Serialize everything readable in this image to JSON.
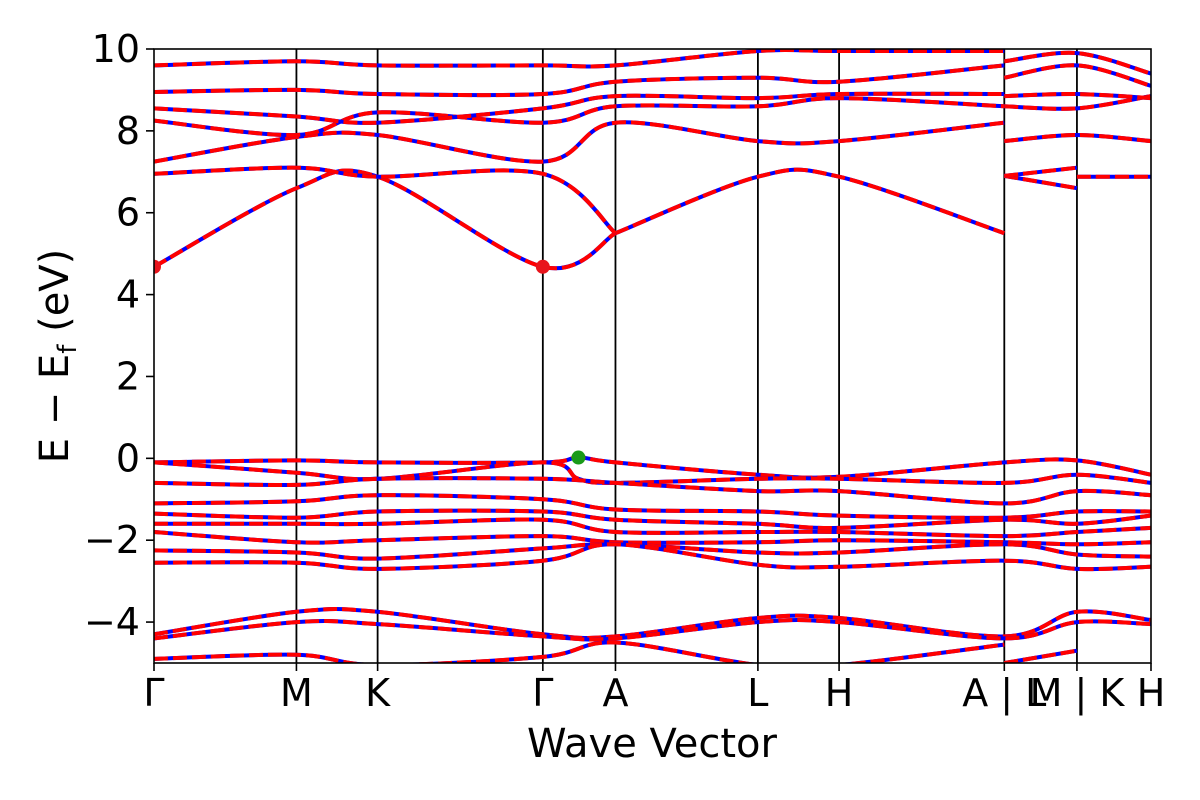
{
  "chart_data": {
    "type": "line",
    "xlabel": "Wave Vector",
    "ylabel": "E − E",
    "ylabel_sub": "f",
    "ylabel_unit": " (eV)",
    "ylim": [
      -5,
      10
    ],
    "yticks": [
      -4,
      -2,
      0,
      2,
      4,
      6,
      8,
      10
    ],
    "ytick_labels": [
      "−4",
      "−2",
      "0",
      "2",
      "4",
      "6",
      "8",
      "10"
    ],
    "xlim": [
      0,
      7.0
    ],
    "kpath": [
      {
        "label": "Γ",
        "x": 0.0
      },
      {
        "label": "M",
        "x": 1.0
      },
      {
        "label": "K",
        "x": 1.57
      },
      {
        "label": "Γ",
        "x": 2.73
      },
      {
        "label": "A",
        "x": 3.24
      },
      {
        "label": "L",
        "x": 4.24
      },
      {
        "label": "H",
        "x": 4.81
      },
      {
        "label": "A | L",
        "x": 5.97
      },
      {
        "label": "M | K",
        "x": 6.48
      },
      {
        "label": "H",
        "x": 7.0
      }
    ],
    "line_colors": {
      "spin_up": "#ff0000",
      "spin_down": "#0000ff"
    },
    "series": [
      {
        "x": [
          0.0,
          1.0,
          1.57,
          2.73,
          3.24
        ],
        "y": [
          4.68,
          6.6,
          6.88,
          4.68,
          5.5
        ]
      },
      {
        "x": [
          3.24,
          4.24,
          4.81,
          5.97
        ],
        "y": [
          5.5,
          6.88,
          6.88,
          5.5
        ]
      },
      {
        "x": [
          0.0,
          1.0,
          1.57,
          2.73,
          3.24
        ],
        "y": [
          6.95,
          7.1,
          6.88,
          6.95,
          5.5
        ]
      },
      {
        "x": [
          0.0,
          1.0,
          1.57,
          2.73,
          3.24,
          4.24,
          4.81,
          5.97
        ],
        "y": [
          7.25,
          7.85,
          7.9,
          7.25,
          8.2,
          7.75,
          7.75,
          8.2
        ]
      },
      {
        "x": [
          0.0,
          1.0,
          1.57,
          2.73,
          3.24,
          4.24,
          4.81,
          5.97
        ],
        "y": [
          8.25,
          7.9,
          8.45,
          8.2,
          8.6,
          8.6,
          8.8,
          8.6
        ]
      },
      {
        "x": [
          0.0,
          1.0,
          1.57,
          2.73,
          3.24,
          4.24,
          4.81,
          5.97
        ],
        "y": [
          8.55,
          8.35,
          8.2,
          8.55,
          8.85,
          8.8,
          8.9,
          8.9
        ]
      },
      {
        "x": [
          0.0,
          1.0,
          1.57,
          2.73,
          3.24,
          4.24,
          4.81,
          5.97
        ],
        "y": [
          8.95,
          9.0,
          8.9,
          8.9,
          9.2,
          9.3,
          9.2,
          9.6
        ]
      },
      {
        "x": [
          0.0,
          1.0,
          1.57,
          2.73,
          3.24,
          4.24,
          4.81,
          5.97
        ],
        "y": [
          9.6,
          9.7,
          9.6,
          9.6,
          9.6,
          9.95,
          9.95,
          9.95
        ]
      },
      {
        "x": [
          5.97,
          6.48
        ],
        "y": [
          6.9,
          6.6
        ]
      },
      {
        "x": [
          5.97,
          6.48
        ],
        "y": [
          6.9,
          7.1
        ]
      },
      {
        "x": [
          6.48,
          7.0
        ],
        "y": [
          6.88,
          6.88
        ]
      },
      {
        "x": [
          5.97,
          6.48,
          7.0
        ],
        "y": [
          7.75,
          7.9,
          7.75
        ]
      },
      {
        "x": [
          5.97,
          6.48,
          7.0
        ],
        "y": [
          8.6,
          8.55,
          8.85
        ]
      },
      {
        "x": [
          5.97,
          6.48,
          7.0
        ],
        "y": [
          8.85,
          8.9,
          8.8
        ]
      },
      {
        "x": [
          5.97,
          6.48,
          7.0
        ],
        "y": [
          9.3,
          9.6,
          9.1
        ]
      },
      {
        "x": [
          5.97,
          6.48,
          7.0
        ],
        "y": [
          9.7,
          9.9,
          9.4
        ]
      },
      {
        "x": [
          0.0,
          1.0,
          1.57,
          2.73,
          2.98,
          3.24,
          4.24,
          4.81,
          5.97,
          6.48,
          7.0
        ],
        "y": [
          -0.1,
          -0.05,
          -0.1,
          -0.1,
          0.02,
          -0.1,
          -0.4,
          -0.45,
          -0.1,
          -0.05,
          -0.4
        ]
      },
      {
        "x": [
          0.0,
          1.0,
          1.57,
          2.73,
          2.98,
          3.24,
          4.24,
          4.81,
          5.97,
          6.48,
          7.0
        ],
        "y": [
          -0.1,
          -0.35,
          -0.5,
          -0.1,
          -0.5,
          -0.6,
          -0.5,
          -0.5,
          -0.6,
          -0.4,
          -0.6
        ]
      },
      {
        "x": [
          0.0,
          1.0,
          1.57,
          2.73,
          3.24,
          4.24,
          4.81,
          5.97,
          6.48,
          7.0
        ],
        "y": [
          -0.6,
          -0.65,
          -0.5,
          -0.5,
          -0.6,
          -0.8,
          -0.8,
          -1.1,
          -0.8,
          -0.9
        ]
      },
      {
        "x": [
          0.0,
          1.0,
          1.57,
          2.73,
          3.24,
          4.24,
          4.81,
          5.97,
          6.48,
          7.0
        ],
        "y": [
          -1.1,
          -1.05,
          -0.9,
          -1.0,
          -1.25,
          -1.3,
          -1.4,
          -1.45,
          -1.3,
          -1.3
        ]
      },
      {
        "x": [
          0.0,
          1.0,
          1.57,
          2.73,
          3.24,
          4.24,
          4.81,
          5.97,
          6.48,
          7.0
        ],
        "y": [
          -1.35,
          -1.45,
          -1.3,
          -1.3,
          -1.5,
          -1.6,
          -1.7,
          -1.5,
          -1.6,
          -1.4
        ]
      },
      {
        "x": [
          0.0,
          1.0,
          1.57,
          2.73,
          3.24,
          4.24,
          4.81,
          5.97,
          6.48,
          7.0
        ],
        "y": [
          -1.6,
          -1.6,
          -1.6,
          -1.5,
          -1.8,
          -1.8,
          -1.8,
          -1.9,
          -1.8,
          -1.7
        ]
      },
      {
        "x": [
          0.0,
          1.0,
          1.57,
          2.73,
          3.24,
          4.24,
          4.81,
          5.97,
          6.48,
          7.0
        ],
        "y": [
          -1.8,
          -2.05,
          -2.0,
          -1.9,
          -2.05,
          -2.05,
          -2.0,
          -2.05,
          -2.1,
          -2.05
        ]
      },
      {
        "x": [
          0.0,
          1.0,
          1.57,
          2.73,
          3.24,
          4.24,
          4.81,
          5.97,
          6.48,
          7.0
        ],
        "y": [
          -2.25,
          -2.3,
          -2.45,
          -2.2,
          -2.1,
          -2.3,
          -2.3,
          -2.1,
          -2.35,
          -2.4
        ]
      },
      {
        "x": [
          0.0,
          1.0,
          1.57,
          2.73,
          3.24,
          4.24,
          4.81,
          5.97,
          6.48,
          7.0
        ],
        "y": [
          -2.55,
          -2.55,
          -2.7,
          -2.5,
          -2.1,
          -2.6,
          -2.65,
          -2.5,
          -2.7,
          -2.65
        ]
      },
      {
        "x": [
          0.0,
          1.0,
          1.57,
          2.73,
          3.24,
          4.24,
          4.81,
          5.97,
          6.48,
          7.0
        ],
        "y": [
          -4.3,
          -3.75,
          -3.75,
          -4.3,
          -4.35,
          -3.9,
          -3.9,
          -4.35,
          -3.75,
          -3.95
        ]
      },
      {
        "x": [
          0.0,
          1.0,
          1.57,
          2.73,
          3.24,
          4.24,
          4.81,
          5.97,
          6.48,
          7.0
        ],
        "y": [
          -4.4,
          -4.0,
          -4.05,
          -4.35,
          -4.4,
          -4.0,
          -4.0,
          -4.4,
          -4.0,
          -4.05
        ]
      },
      {
        "x": [
          0.0,
          1.0,
          1.57,
          2.73,
          3.24,
          4.24,
          4.81,
          5.97
        ],
        "y": [
          -4.9,
          -4.8,
          -5.05,
          -4.85,
          -4.5,
          -5.05,
          -5.05,
          -4.55
        ]
      },
      {
        "x": [
          5.97,
          6.48
        ],
        "y": [
          -5.0,
          -4.7
        ]
      }
    ],
    "markers": [
      {
        "x": 0.0,
        "y": 4.68,
        "color": "#e8141c"
      },
      {
        "x": 2.73,
        "y": 4.68,
        "color": "#e8141c"
      },
      {
        "x": 2.98,
        "y": 0.02,
        "color": "#1a9a1a"
      }
    ]
  }
}
